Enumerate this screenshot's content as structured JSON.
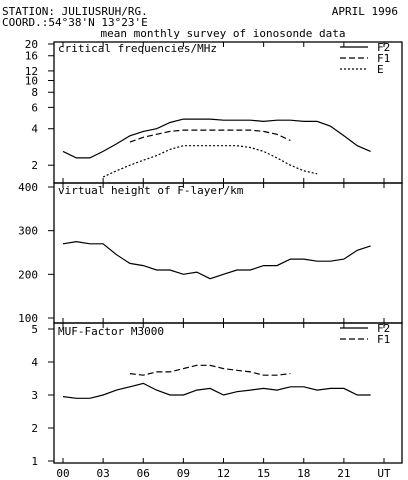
{
  "header": {
    "station": "STATION: JULIUSRUH/RG.",
    "date": "APRIL 1996",
    "coord": "COORD.:54°38'N 13°23'E",
    "subtitle": "mean monthly survey of ionosonde data"
  },
  "x_axis": {
    "tick_labels": [
      "00",
      "03",
      "06",
      "09",
      "12",
      "15",
      "18",
      "21",
      "UT"
    ],
    "range_hours": [
      0,
      24
    ],
    "tick_hours": [
      0,
      3,
      6,
      9,
      12,
      15,
      18,
      21,
      24
    ]
  },
  "chart_data": [
    {
      "type": "line",
      "title": "critical frequencies/MHz",
      "y_scale": "log",
      "ylim": [
        1.4,
        20
      ],
      "y_tick_labels": [
        "2",
        "4",
        "6",
        "8",
        "10",
        "12",
        "16",
        "20"
      ],
      "y_ticks": [
        2,
        4,
        6,
        8,
        10,
        12,
        16,
        20
      ],
      "legend_position": "top-right",
      "series": [
        {
          "name": "F2",
          "style": "solid",
          "x": [
            0,
            1,
            2,
            3,
            4,
            5,
            6,
            7,
            8,
            9,
            10,
            11,
            12,
            13,
            14,
            15,
            16,
            17,
            18,
            19,
            20,
            21,
            22,
            23
          ],
          "values": [
            2.6,
            2.3,
            2.3,
            2.6,
            3.0,
            3.5,
            3.8,
            4.0,
            4.5,
            4.8,
            4.8,
            4.8,
            4.7,
            4.7,
            4.7,
            4.6,
            4.7,
            4.7,
            4.6,
            4.6,
            4.2,
            3.5,
            2.9,
            2.6
          ]
        },
        {
          "name": "F1",
          "style": "dashed",
          "x": [
            5,
            6,
            7,
            8,
            9,
            10,
            11,
            12,
            13,
            14,
            15,
            16,
            17
          ],
          "values": [
            3.1,
            3.4,
            3.6,
            3.8,
            3.9,
            3.9,
            3.9,
            3.9,
            3.9,
            3.9,
            3.8,
            3.6,
            3.2
          ]
        },
        {
          "name": "E",
          "style": "dotted",
          "x": [
            3,
            4,
            5,
            6,
            7,
            8,
            9,
            10,
            11,
            12,
            13,
            14,
            15,
            16,
            17,
            18,
            19
          ],
          "values": [
            1.6,
            1.8,
            2.0,
            2.2,
            2.4,
            2.7,
            2.9,
            2.9,
            2.9,
            2.9,
            2.9,
            2.8,
            2.6,
            2.3,
            2.0,
            1.8,
            1.7
          ]
        }
      ]
    },
    {
      "type": "line",
      "title": "virtual height of F-layer/km",
      "ylim": [
        100,
        400
      ],
      "y_tick_labels": [
        "100",
        "200",
        "300",
        "400"
      ],
      "y_ticks": [
        100,
        200,
        300,
        400
      ],
      "series": [
        {
          "style": "solid",
          "x": [
            0,
            1,
            2,
            3,
            4,
            5,
            6,
            7,
            8,
            9,
            10,
            11,
            12,
            13,
            14,
            15,
            16,
            17,
            18,
            19,
            20,
            21,
            22,
            23
          ],
          "values": [
            270,
            275,
            270,
            270,
            245,
            225,
            220,
            210,
            210,
            200,
            205,
            190,
            200,
            210,
            210,
            220,
            220,
            235,
            235,
            230,
            230,
            235,
            255,
            265
          ]
        }
      ]
    },
    {
      "type": "line",
      "title": "MUF-Factor M3000",
      "ylim": [
        1,
        5
      ],
      "y_tick_labels": [
        "1",
        "2",
        "3",
        "4",
        "5"
      ],
      "y_ticks": [
        1,
        2,
        3,
        4,
        5
      ],
      "legend_position": "top-right",
      "series": [
        {
          "name": "F2",
          "style": "solid",
          "x": [
            0,
            1,
            2,
            3,
            4,
            5,
            6,
            7,
            8,
            9,
            10,
            11,
            12,
            13,
            14,
            15,
            16,
            17,
            18,
            19,
            20,
            21,
            22,
            23
          ],
          "values": [
            2.95,
            2.9,
            2.9,
            3.0,
            3.15,
            3.25,
            3.35,
            3.15,
            3.0,
            3.0,
            3.15,
            3.2,
            3.0,
            3.1,
            3.15,
            3.2,
            3.15,
            3.25,
            3.25,
            3.15,
            3.2,
            3.2,
            3.0,
            3.0
          ]
        },
        {
          "name": "F1",
          "style": "dashed",
          "x": [
            5,
            6,
            7,
            8,
            9,
            10,
            11,
            12,
            13,
            14,
            15,
            16,
            17
          ],
          "values": [
            3.65,
            3.6,
            3.7,
            3.7,
            3.8,
            3.9,
            3.9,
            3.8,
            3.75,
            3.7,
            3.6,
            3.6,
            3.65
          ]
        }
      ]
    }
  ]
}
